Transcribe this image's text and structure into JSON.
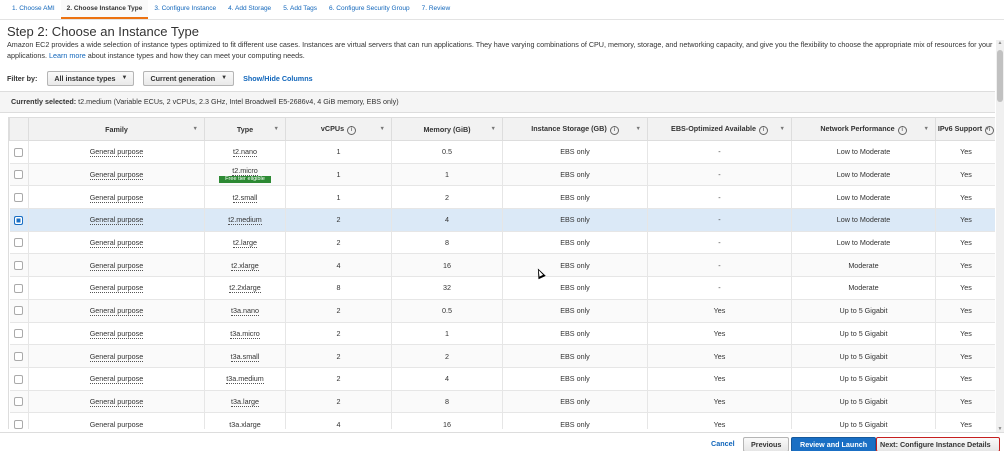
{
  "wizard": {
    "tabs": [
      {
        "label": "1. Choose AMI",
        "active": false
      },
      {
        "label": "2. Choose Instance Type",
        "active": true
      },
      {
        "label": "3. Configure Instance",
        "active": false
      },
      {
        "label": "4. Add Storage",
        "active": false
      },
      {
        "label": "5. Add Tags",
        "active": false
      },
      {
        "label": "6. Configure Security Group",
        "active": false
      },
      {
        "label": "7. Review",
        "active": false
      }
    ]
  },
  "page": {
    "title": "Step 2: Choose an Instance Type",
    "description_pre": "Amazon EC2 provides a wide selection of instance types optimized to fit different use cases. Instances are virtual servers that can run applications. They have varying combinations of CPU, memory, storage, and networking capacity, and give you the flexibility to choose the appropriate mix of resources for your applications.",
    "learn_more": "Learn more",
    "description_post": "about instance types and how they can meet your computing needs."
  },
  "filter": {
    "label": "Filter by:",
    "type_select": "All instance types",
    "generation_select": "Current generation",
    "show_hide": "Show/Hide Columns"
  },
  "current": {
    "label": "Currently selected:",
    "value": "t2.medium (Variable ECUs, 2 vCPUs, 2.3 GHz, Intel Broadwell E5-2686v4, 4 GiB memory, EBS only)"
  },
  "table": {
    "columns": [
      "Family",
      "Type",
      "vCPUs",
      "Memory (GiB)",
      "Instance Storage (GB)",
      "EBS-Optimized Available",
      "Network Performance",
      "IPv6 Support"
    ],
    "free_tier_badge": "Free tier eligible",
    "rows": [
      {
        "family": "General purpose",
        "type": "t2.nano",
        "vcpus": "1",
        "memory": "0.5",
        "storage": "EBS only",
        "ebs": "-",
        "network": "Low to Moderate",
        "ipv6": "Yes",
        "selected": false,
        "free": false
      },
      {
        "family": "General purpose",
        "type": "t2.micro",
        "vcpus": "1",
        "memory": "1",
        "storage": "EBS only",
        "ebs": "-",
        "network": "Low to Moderate",
        "ipv6": "Yes",
        "selected": false,
        "free": true
      },
      {
        "family": "General purpose",
        "type": "t2.small",
        "vcpus": "1",
        "memory": "2",
        "storage": "EBS only",
        "ebs": "-",
        "network": "Low to Moderate",
        "ipv6": "Yes",
        "selected": false,
        "free": false
      },
      {
        "family": "General purpose",
        "type": "t2.medium",
        "vcpus": "2",
        "memory": "4",
        "storage": "EBS only",
        "ebs": "-",
        "network": "Low to Moderate",
        "ipv6": "Yes",
        "selected": true,
        "free": false
      },
      {
        "family": "General purpose",
        "type": "t2.large",
        "vcpus": "2",
        "memory": "8",
        "storage": "EBS only",
        "ebs": "-",
        "network": "Low to Moderate",
        "ipv6": "Yes",
        "selected": false,
        "free": false
      },
      {
        "family": "General purpose",
        "type": "t2.xlarge",
        "vcpus": "4",
        "memory": "16",
        "storage": "EBS only",
        "ebs": "-",
        "network": "Moderate",
        "ipv6": "Yes",
        "selected": false,
        "free": false
      },
      {
        "family": "General purpose",
        "type": "t2.2xlarge",
        "vcpus": "8",
        "memory": "32",
        "storage": "EBS only",
        "ebs": "-",
        "network": "Moderate",
        "ipv6": "Yes",
        "selected": false,
        "free": false
      },
      {
        "family": "General purpose",
        "type": "t3a.nano",
        "vcpus": "2",
        "memory": "0.5",
        "storage": "EBS only",
        "ebs": "Yes",
        "network": "Up to 5 Gigabit",
        "ipv6": "Yes",
        "selected": false,
        "free": false
      },
      {
        "family": "General purpose",
        "type": "t3a.micro",
        "vcpus": "2",
        "memory": "1",
        "storage": "EBS only",
        "ebs": "Yes",
        "network": "Up to 5 Gigabit",
        "ipv6": "Yes",
        "selected": false,
        "free": false
      },
      {
        "family": "General purpose",
        "type": "t3a.small",
        "vcpus": "2",
        "memory": "2",
        "storage": "EBS only",
        "ebs": "Yes",
        "network": "Up to 5 Gigabit",
        "ipv6": "Yes",
        "selected": false,
        "free": false
      },
      {
        "family": "General purpose",
        "type": "t3a.medium",
        "vcpus": "2",
        "memory": "4",
        "storage": "EBS only",
        "ebs": "Yes",
        "network": "Up to 5 Gigabit",
        "ipv6": "Yes",
        "selected": false,
        "free": false
      },
      {
        "family": "General purpose",
        "type": "t3a.large",
        "vcpus": "2",
        "memory": "8",
        "storage": "EBS only",
        "ebs": "Yes",
        "network": "Up to 5 Gigabit",
        "ipv6": "Yes",
        "selected": false,
        "free": false
      },
      {
        "family": "General purpose",
        "type": "t3a.xlarge",
        "vcpus": "4",
        "memory": "16",
        "storage": "EBS only",
        "ebs": "Yes",
        "network": "Up to 5 Gigabit",
        "ipv6": "Yes",
        "selected": false,
        "free": false
      }
    ]
  },
  "footer": {
    "cancel": "Cancel",
    "previous": "Previous",
    "review_launch": "Review and Launch",
    "next": "Next: Configure Instance Details"
  },
  "colors": {
    "link": "#1166bb",
    "primary_button": "#1a6fc4",
    "selected_row": "#dbe9f7",
    "free_badge": "#2d8a34",
    "active_tab_underline": "#ec7211",
    "next_button_highlight": "#c51f1f"
  }
}
